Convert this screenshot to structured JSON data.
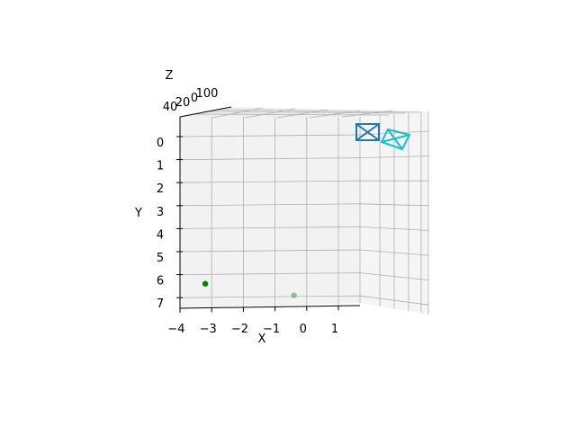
{
  "chart_data": {
    "type": "scatter",
    "projection": "3d",
    "title": "",
    "xlabel": "X",
    "ylabel": "Y",
    "zlabel": "Z",
    "x_ticks": [
      "−4",
      "−3",
      "−2",
      "−1",
      "0",
      "1"
    ],
    "y_ticks": [
      "0",
      "1",
      "2",
      "3",
      "4",
      "5",
      "6",
      "7"
    ],
    "z_ticks": [
      "40",
      "20",
      "0",
      "100"
    ],
    "xlim": [
      -4,
      1.7
    ],
    "ylim": [
      0,
      7.2
    ],
    "grid": true,
    "pane_color": "#f2f2f2",
    "points": [
      {
        "x": -3.4,
        "y": 6.2,
        "color": "#008000",
        "opacity": 1.0
      },
      {
        "x": -0.6,
        "y": 6.7,
        "color": "#008000",
        "opacity": 0.4
      }
    ],
    "camera_frames": [
      {
        "label": "camera-1",
        "color": "#1f77b4"
      },
      {
        "label": "camera-2",
        "color": "#17becf"
      }
    ]
  }
}
